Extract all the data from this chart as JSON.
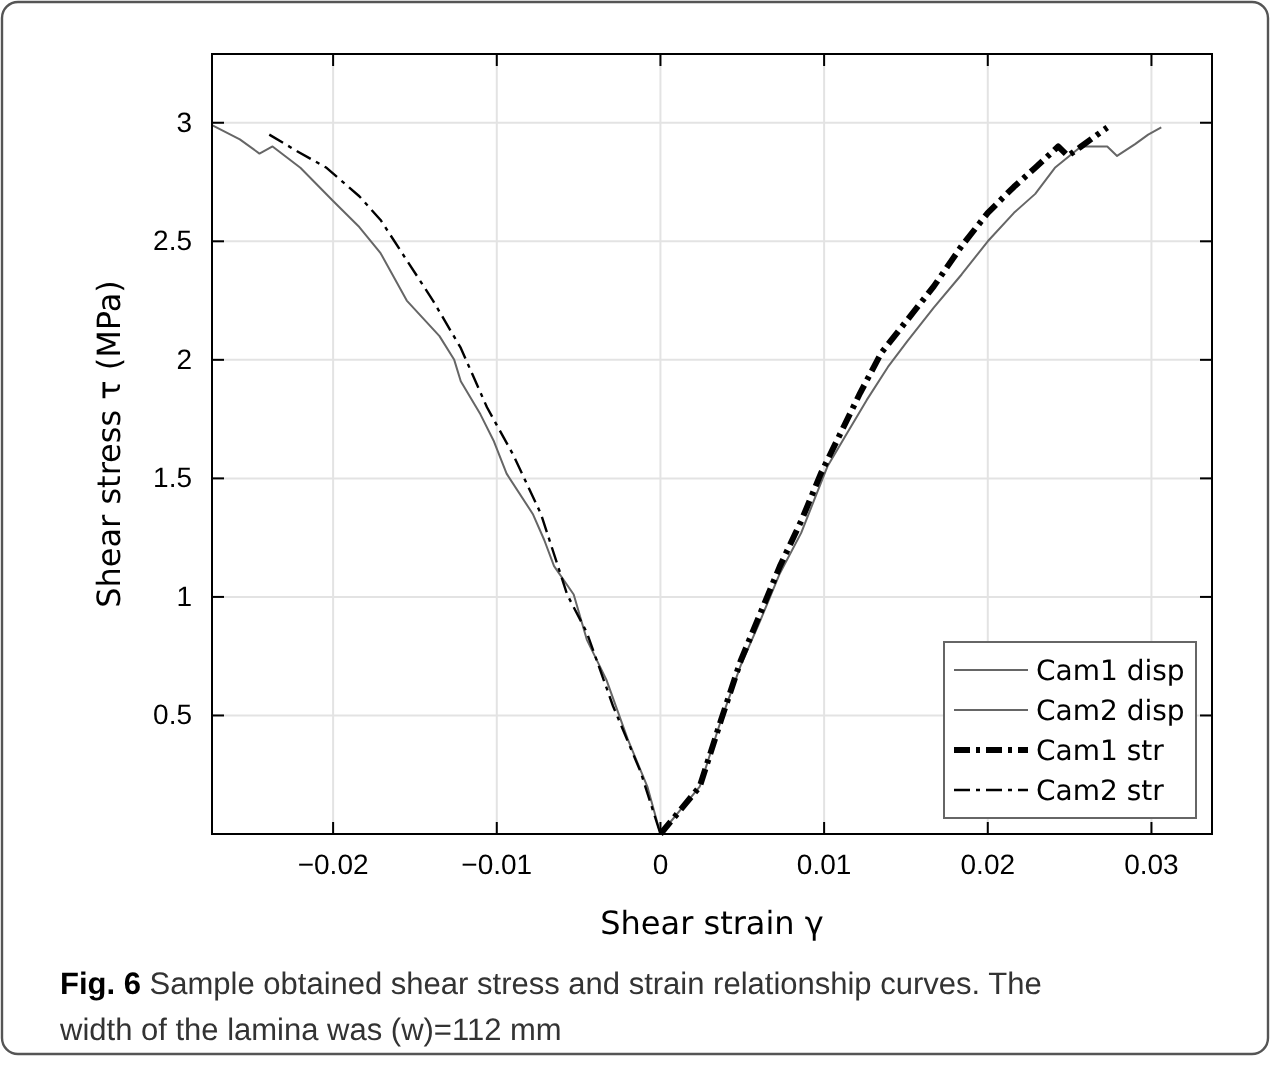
{
  "chart_data": {
    "type": "line",
    "xlabel": "Shear strain  γ",
    "ylabel": "Shear stress  τ (MPa)",
    "xlim": [
      -0.0274,
      0.0337
    ],
    "ylim": [
      0,
      3.29
    ],
    "xticks": [
      -0.02,
      -0.01,
      0,
      0.01,
      0.02,
      0.03
    ],
    "yticks": [
      0.5,
      1,
      1.5,
      2,
      2.5,
      3
    ],
    "grid": true,
    "legend": "bottom right",
    "annotations": [
      "Fig. 6",
      "Sample obtained shear stress and strain relationship curves. The width of the lamina was (w)=112 mm"
    ],
    "series": [
      {
        "name": "Cam1 disp",
        "color": "#666666",
        "line_style": "solid",
        "x": [
          0,
          0.0024,
          0.0037,
          0.0049,
          0.0061,
          0.0073,
          0.0086,
          0.0094,
          0.0102,
          0.0114,
          0.0126,
          0.0139,
          0.0151,
          0.0167,
          0.0184,
          0.02,
          0.0216,
          0.0229,
          0.0241,
          0.0257,
          0.0273,
          0.0279,
          0.029,
          0.0298,
          0.0306
        ],
        "values": [
          0,
          0.2,
          0.48,
          0.71,
          0.9,
          1.1,
          1.27,
          1.41,
          1.55,
          1.69,
          1.83,
          1.97,
          2.08,
          2.22,
          2.36,
          2.5,
          2.62,
          2.7,
          2.81,
          2.9,
          2.9,
          2.86,
          2.91,
          2.95,
          2.98
        ]
      },
      {
        "name": "Cam2 disp",
        "color": "#666666",
        "line_style": "solid",
        "x": [
          -0.0274,
          -0.0257,
          -0.0245,
          -0.0237,
          -0.022,
          -0.02,
          -0.0184,
          -0.0171,
          -0.0155,
          -0.0135,
          -0.0126,
          -0.0122,
          -0.011,
          -0.0102,
          -0.0094,
          -0.0078,
          -0.0071,
          -0.0065,
          -0.0053,
          -0.0045,
          -0.0033,
          -0.002,
          -0.0008,
          0
        ],
        "values": [
          2.99,
          2.93,
          2.87,
          2.9,
          2.81,
          2.67,
          2.56,
          2.45,
          2.25,
          2.1,
          2.0,
          1.91,
          1.77,
          1.66,
          1.52,
          1.35,
          1.24,
          1.13,
          1.01,
          0.82,
          0.65,
          0.4,
          0.2,
          0
        ]
      },
      {
        "name": "Cam1 str",
        "color": "#000000",
        "line_style": "dashdot",
        "x": [
          0,
          0.0024,
          0.0037,
          0.0049,
          0.0061,
          0.0073,
          0.0086,
          0.0098,
          0.011,
          0.0122,
          0.0135,
          0.0151,
          0.0167,
          0.0184,
          0.02,
          0.0216,
          0.0229,
          0.0243,
          0.0249,
          0.0257,
          0.0273
        ],
        "values": [
          0,
          0.2,
          0.48,
          0.73,
          0.93,
          1.13,
          1.32,
          1.52,
          1.69,
          1.86,
          2.03,
          2.17,
          2.31,
          2.48,
          2.62,
          2.73,
          2.81,
          2.9,
          2.86,
          2.9,
          2.98
        ]
      },
      {
        "name": "Cam2 str",
        "color": "#000000",
        "line_style": "dashdot",
        "x": [
          -0.0239,
          -0.0222,
          -0.0204,
          -0.0184,
          -0.0171,
          -0.0155,
          -0.0139,
          -0.0122,
          -0.0106,
          -0.009,
          -0.0073,
          -0.0057,
          -0.0045,
          -0.0029,
          -0.0012,
          0
        ],
        "values": [
          2.95,
          2.88,
          2.81,
          2.69,
          2.59,
          2.42,
          2.25,
          2.05,
          1.8,
          1.6,
          1.35,
          1.01,
          0.85,
          0.54,
          0.26,
          0
        ]
      }
    ]
  }
}
